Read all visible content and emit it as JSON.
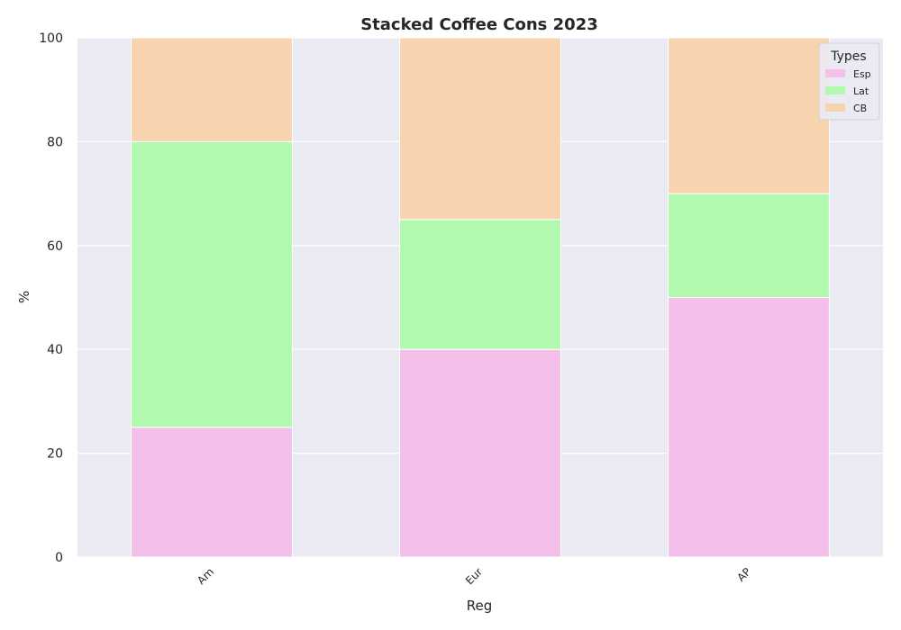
{
  "chart_data": {
    "type": "bar",
    "stacked": true,
    "title": "Stacked Coffee Cons 2023",
    "xlabel": "Reg",
    "ylabel": "%",
    "ylim": [
      0,
      100
    ],
    "yticks": [
      "0",
      "20",
      "40",
      "60",
      "80",
      "100"
    ],
    "categories": [
      "Am",
      "Eur",
      "AP"
    ],
    "series": [
      {
        "name": "Esp",
        "values": [
          25,
          40,
          50
        ],
        "color": "#f4bfe8"
      },
      {
        "name": "Lat",
        "values": [
          55,
          25,
          20
        ],
        "color": "#b1f9ae"
      },
      {
        "name": "CB",
        "values": [
          20,
          35,
          30
        ],
        "color": "#f8d3b0"
      }
    ],
    "grid": true,
    "legend": {
      "title": "Types",
      "position": "top-right"
    },
    "colors": {
      "plot_background": "#eaeaf2",
      "grid": "#ffffff",
      "text": "#262626"
    }
  }
}
